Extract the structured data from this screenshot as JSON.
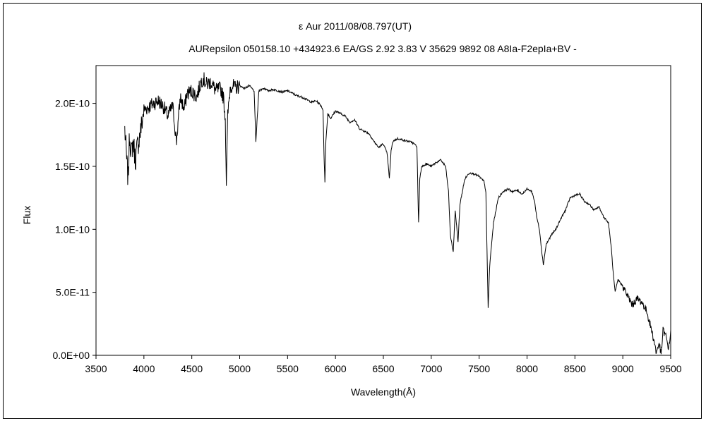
{
  "chart_data": {
    "type": "line",
    "title": "ε  Aur   2011/08/08.797(UT)",
    "subtitle": "AURepsilon 050158.10 +434923.6 EA/GS 2.92 3.83 V 35629 9892 08 A8Ia-F2epIa+BV -",
    "xlabel": "Wavelength(Å)",
    "ylabel": "Flux",
    "xlim": [
      3500,
      9500
    ],
    "ylim": [
      0,
      2.3e-10
    ],
    "x_ticks": [
      3500,
      4000,
      4500,
      5000,
      5500,
      6000,
      6500,
      7000,
      7500,
      8000,
      8500,
      9000,
      9500
    ],
    "y_ticks": [
      0,
      5e-11,
      1e-10,
      1.5e-10,
      2e-10
    ],
    "y_tick_labels": [
      "0.0E+00",
      "5.0E-11",
      "1.0E-10",
      "1.5E-10",
      "2.0E-10"
    ],
    "grid": false,
    "series": [
      {
        "color": "#000000",
        "x": [
          3800,
          3820,
          3835,
          3850,
          3870,
          3890,
          3910,
          3930,
          3950,
          3970,
          3990,
          4000,
          4050,
          4100,
          4150,
          4200,
          4250,
          4300,
          4340,
          4380,
          4420,
          4450,
          4500,
          4550,
          4600,
          4620,
          4650,
          4700,
          4750,
          4800,
          4830,
          4850,
          4861,
          4875,
          4900,
          4920,
          4950,
          5000,
          5050,
          5100,
          5150,
          5169,
          5200,
          5250,
          5300,
          5350,
          5400,
          5450,
          5500,
          5550,
          5600,
          5650,
          5700,
          5750,
          5800,
          5850,
          5870,
          5880,
          5890,
          5900,
          5920,
          5950,
          6000,
          6050,
          6100,
          6150,
          6200,
          6250,
          6300,
          6350,
          6400,
          6450,
          6500,
          6540,
          6563,
          6580,
          6600,
          6650,
          6700,
          6750,
          6800,
          6850,
          6868,
          6880,
          6900,
          6950,
          7000,
          7050,
          7100,
          7150,
          7180,
          7200,
          7230,
          7250,
          7280,
          7300,
          7350,
          7400,
          7450,
          7500,
          7550,
          7570,
          7594,
          7610,
          7620,
          7650,
          7700,
          7750,
          7800,
          7850,
          7900,
          7950,
          8000,
          8050,
          8080,
          8100,
          8130,
          8150,
          8170,
          8200,
          8250,
          8300,
          8350,
          8400,
          8450,
          8500,
          8550,
          8600,
          8650,
          8700,
          8750,
          8800,
          8850,
          8880,
          8900,
          8920,
          8950,
          9000,
          9050,
          9100,
          9150,
          9200,
          9250,
          9300,
          9330,
          9350,
          9380,
          9400,
          9420,
          9450,
          9480,
          9500
        ],
        "y": [
          1.8e-10,
          1.55e-10,
          1.4e-10,
          1.75e-10,
          1.6e-10,
          1.7e-10,
          1.55e-10,
          1.65e-10,
          1.72e-10,
          1.8e-10,
          1.9e-10,
          1.95e-10,
          1.97e-10,
          2e-10,
          2.02e-10,
          1.98e-10,
          1.9e-10,
          1.98e-10,
          1.7e-10,
          2.05e-10,
          1.95e-10,
          2.08e-10,
          2.1e-10,
          2.05e-10,
          2.18e-10,
          2.2e-10,
          2.15e-10,
          2.17e-10,
          2.1e-10,
          2.12e-10,
          2.05e-10,
          1.88e-10,
          1.38e-10,
          1.9e-10,
          2.12e-10,
          2.15e-10,
          2.12e-10,
          2.14e-10,
          2.12e-10,
          2.14e-10,
          2.1e-10,
          1.7e-10,
          2.1e-10,
          2.12e-10,
          2.1e-10,
          2.11e-10,
          2.1e-10,
          2.09e-10,
          2.1e-10,
          2.08e-10,
          2.06e-10,
          2.05e-10,
          2.03e-10,
          2.01e-10,
          2.02e-10,
          1.98e-10,
          1.95e-10,
          1.6e-10,
          1.38e-10,
          1.7e-10,
          1.92e-10,
          1.88e-10,
          1.94e-10,
          1.92e-10,
          1.9e-10,
          1.85e-10,
          1.87e-10,
          1.8e-10,
          1.78e-10,
          1.76e-10,
          1.7e-10,
          1.65e-10,
          1.68e-10,
          1.6e-10,
          1.4e-10,
          1.62e-10,
          1.7e-10,
          1.72e-10,
          1.71e-10,
          1.7e-10,
          1.69e-10,
          1.66e-10,
          1.05e-10,
          1.4e-10,
          1.5e-10,
          1.52e-10,
          1.5e-10,
          1.53e-10,
          1.55e-10,
          1.5e-10,
          1.3e-10,
          9.5e-11,
          8.2e-11,
          1.15e-10,
          9e-11,
          1.2e-10,
          1.4e-10,
          1.45e-10,
          1.44e-10,
          1.42e-10,
          1.38e-10,
          1.3e-10,
          3.8e-11,
          7e-11,
          8e-11,
          1.05e-10,
          1.25e-10,
          1.3e-10,
          1.32e-10,
          1.3e-10,
          1.31e-10,
          1.28e-10,
          1.32e-10,
          1.3e-10,
          1.22e-10,
          1.1e-10,
          1e-10,
          8.5e-11,
          7.2e-11,
          8.8e-11,
          9.5e-11,
          1e-10,
          1.08e-10,
          1.15e-10,
          1.25e-10,
          1.27e-10,
          1.28e-10,
          1.22e-10,
          1.2e-10,
          1.15e-10,
          1.18e-10,
          1.1e-10,
          1.05e-10,
          8.5e-11,
          6.5e-11,
          5e-11,
          6e-11,
          5.5e-11,
          4.7e-11,
          4e-11,
          4.5e-11,
          4.2e-11,
          3.5e-11,
          2e-11,
          1e-11,
          2e-12,
          1e-11,
          0.0,
          2e-11,
          1.5e-11,
          5e-12,
          2e-11
        ]
      }
    ]
  }
}
